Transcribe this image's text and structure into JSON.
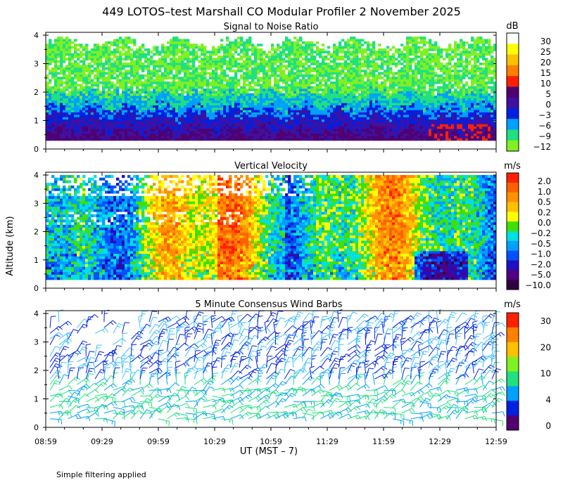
{
  "title": "449 LOTOS–test Marshall CO Modular Profiler  2 November 2025",
  "y_axis_label": "Altitude (km)",
  "x_axis_label": "UT  (MST – 7)",
  "footnote": "Simple filtering applied",
  "chart_data": [
    {
      "type": "heatmap",
      "title": "Signal to Noise Ratio",
      "unit": "dB",
      "ylim": [
        0,
        4.1
      ],
      "yticks": [
        "0",
        "1",
        "2",
        "3",
        "4"
      ],
      "colorbar_labels": [
        "30",
        "25",
        "20",
        "15",
        "10",
        "5",
        "0",
        "−3",
        "−6",
        "−9",
        "−12"
      ],
      "colorbar_colors": [
        "#ffffff",
        "#ffff00",
        "#ffc000",
        "#ff8000",
        "#ff2000",
        "#500070",
        "#4010a0",
        "#0020e0",
        "#00a0ff",
        "#20e080",
        "#80f020"
      ]
    },
    {
      "type": "heatmap",
      "title": "Vertical Velocity",
      "unit": "m/s",
      "ylim": [
        0,
        4.1
      ],
      "yticks": [
        "0",
        "1",
        "2",
        "3",
        "4"
      ],
      "colorbar_labels": [
        "2.0",
        "1.0",
        "0.5",
        "0.2",
        "0.0",
        "−0.2",
        "−0.5",
        "−1.0",
        "−2.0",
        "−5.0",
        "−10.0"
      ],
      "colorbar_colors": [
        "#ff2000",
        "#ff6000",
        "#ff9000",
        "#ffc000",
        "#ffff00",
        "#40e000",
        "#00e0e0",
        "#00a0ff",
        "#0050ff",
        "#2010c0",
        "#500080",
        "#300040"
      ]
    },
    {
      "type": "scatter",
      "title": "5 Minute Consensus Wind Barbs",
      "unit": "m/s",
      "ylim": [
        0,
        4.1
      ],
      "yticks": [
        "0",
        "1",
        "2",
        "3",
        "4"
      ],
      "colorbar_labels": [
        "30",
        "20",
        "10",
        "4",
        "0"
      ],
      "colorbar_colors": [
        "#ff2000",
        "#ff8000",
        "#ffc000",
        "#80f020",
        "#20e080",
        "#00a0ff",
        "#0020e0",
        "#500070"
      ]
    }
  ],
  "x_ticks": [
    "08:59",
    "09:29",
    "09:59",
    "10:29",
    "10:59",
    "11:29",
    "11:59",
    "12:29",
    "12:59"
  ]
}
